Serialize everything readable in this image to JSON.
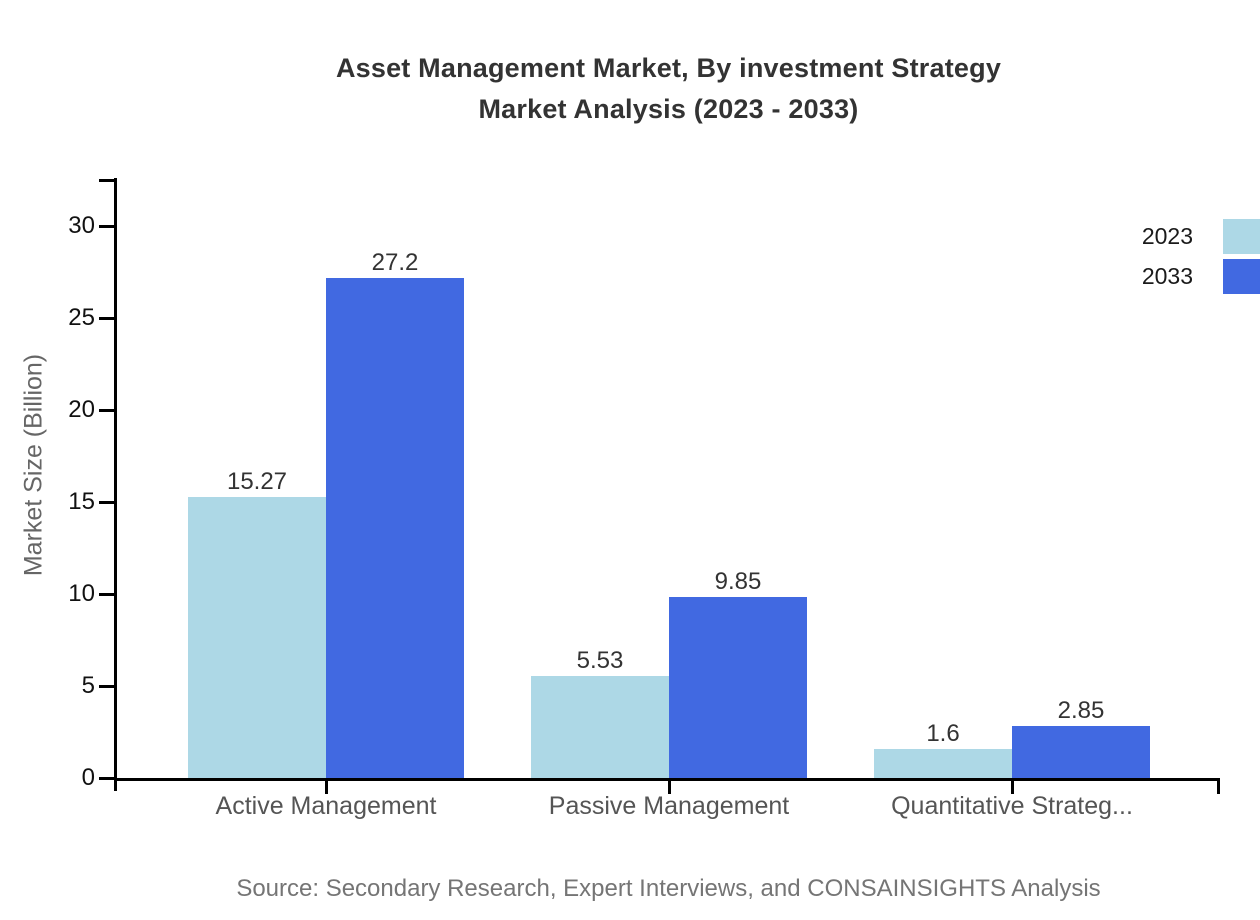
{
  "title": {
    "line1": "Asset Management Market, By investment Strategy",
    "line2": "Market Analysis (2023 - 2033)"
  },
  "y_axis": {
    "label": "Market Size (Billion)"
  },
  "legend": {
    "items": [
      {
        "label": "2023",
        "color": "#ADD8E6"
      },
      {
        "label": "2033",
        "color": "#4169E1"
      }
    ]
  },
  "source": "Source: Secondary Research, Expert Interviews, and CONSAINSIGHTS Analysis",
  "chart_data": {
    "type": "bar",
    "title": "Asset Management Market, By investment Strategy Market Analysis (2023 - 2033)",
    "categories": [
      "Active Management",
      "Passive Management",
      "Quantitative Strateg..."
    ],
    "series": [
      {
        "name": "2023",
        "color": "#ADD8E6",
        "values": [
          15.27,
          5.53,
          1.6
        ],
        "value_labels": [
          "15.27",
          "5.53",
          "1.6"
        ]
      },
      {
        "name": "2033",
        "color": "#4169E1",
        "values": [
          27.2,
          9.85,
          2.85
        ],
        "value_labels": [
          "27.2",
          "9.85",
          "2.85"
        ]
      }
    ],
    "xlabel": "",
    "ylabel": "Market Size (Billion)",
    "ylim": [
      0,
      32.6
    ],
    "yticks": [
      0,
      5,
      10,
      15,
      20,
      25,
      30
    ],
    "grid": false,
    "legend_position": "top-right"
  }
}
